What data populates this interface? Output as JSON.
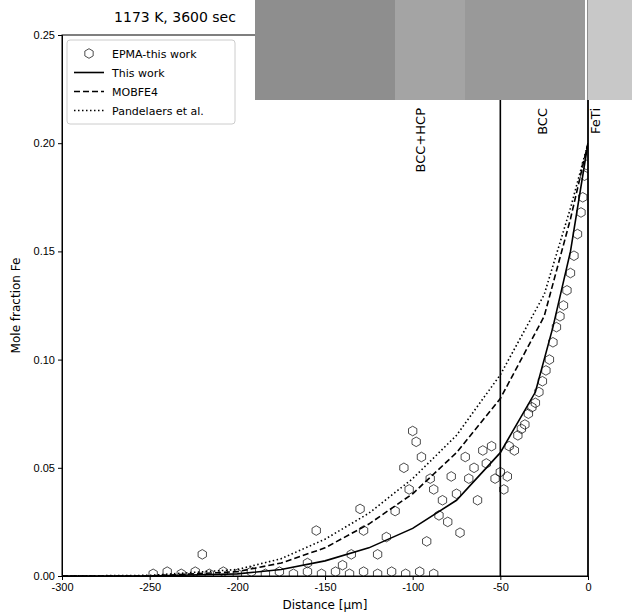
{
  "chart_data": {
    "type": "line",
    "title": "1173 K, 3600 sec",
    "x_label": "Distance [μm]",
    "y_label": "Mole fraction Fe",
    "xlim": [
      -300,
      0
    ],
    "ylim": [
      0,
      0.25
    ],
    "xticks": [
      -300,
      -250,
      -200,
      -150,
      -100,
      -50,
      0
    ],
    "yticks": [
      {
        "value": 0,
        "label": "0.00"
      },
      {
        "value": 0.05,
        "label": "0.05"
      },
      {
        "value": 0.1,
        "label": "0.10"
      },
      {
        "value": 0.15,
        "label": "0.15"
      },
      {
        "value": 0.2,
        "label": "0.20"
      },
      {
        "value": 0.25,
        "label": "0.25"
      }
    ],
    "legend": "upper left",
    "vlines": [
      -50,
      0
    ],
    "annotations": [
      {
        "text": "BCC+HCP",
        "x": -96
      },
      {
        "text": "BCC",
        "x": -26
      },
      {
        "text": "FeTi",
        "x": 4
      }
    ],
    "series": [
      {
        "name": "EPMA-this work",
        "type": "scatter",
        "marker": "hexagon",
        "color": "#000000",
        "x": [
          -248,
          -240,
          -232,
          -224,
          -216,
          -208,
          -200,
          -192,
          -184,
          -176,
          -168,
          -160,
          -152,
          -144,
          -136,
          -128,
          -120,
          -112,
          -104,
          -96,
          -88,
          -220,
          -160,
          -155,
          -130,
          -128,
          -100,
          -98,
          -95,
          -90,
          -88,
          -85,
          -83,
          -80,
          -78,
          -75,
          -73,
          -70,
          -68,
          -65,
          -63,
          -60,
          -58,
          -55,
          -53,
          -50,
          -110,
          -115,
          -120,
          -105,
          -102,
          -92,
          -135,
          -140,
          -48,
          -46,
          -45,
          -42,
          -40,
          -38,
          -36,
          -34,
          -32,
          -30,
          -28,
          -26,
          -24,
          -22,
          -20,
          -18,
          -16,
          -14,
          -12,
          -10,
          -8,
          -6,
          -4,
          -3,
          -2,
          -1
        ],
        "values": [
          0.001,
          0.002,
          0.001,
          0.002,
          0.001,
          0.002,
          0.001,
          0.002,
          0.001,
          0.002,
          0.001,
          0.002,
          0.001,
          0.002,
          0.001,
          0.002,
          0.001,
          0.002,
          0.001,
          0.002,
          0.001,
          0.01,
          0.006,
          0.021,
          0.031,
          0.021,
          0.067,
          0.062,
          0.055,
          0.045,
          0.04,
          0.028,
          0.035,
          0.025,
          0.046,
          0.038,
          0.02,
          0.055,
          0.045,
          0.05,
          0.035,
          0.058,
          0.052,
          0.06,
          0.045,
          0.048,
          0.03,
          0.018,
          0.01,
          0.05,
          0.04,
          0.016,
          0.01,
          0.005,
          0.04,
          0.046,
          0.06,
          0.058,
          0.065,
          0.068,
          0.07,
          0.075,
          0.078,
          0.08,
          0.085,
          0.09,
          0.095,
          0.1,
          0.108,
          0.115,
          0.12,
          0.125,
          0.132,
          0.14,
          0.148,
          0.158,
          0.168,
          0.175,
          0.185,
          0.19
        ]
      },
      {
        "name": "This work",
        "type": "line",
        "line_style": "solid",
        "color": "#000000",
        "x": [
          -300,
          -250,
          -200,
          -175,
          -150,
          -125,
          -100,
          -75,
          -50,
          -30,
          -20,
          -10,
          0
        ],
        "values": [
          0,
          0,
          0.001,
          0.003,
          0.007,
          0.013,
          0.022,
          0.035,
          0.057,
          0.085,
          0.115,
          0.15,
          0.2
        ]
      },
      {
        "name": "MOBFE4",
        "type": "line",
        "line_style": "dashed",
        "color": "#000000",
        "x": [
          -300,
          -250,
          -200,
          -175,
          -150,
          -125,
          -100,
          -75,
          -50,
          -25,
          -10,
          0
        ],
        "values": [
          0,
          0,
          0.002,
          0.006,
          0.013,
          0.024,
          0.038,
          0.057,
          0.082,
          0.12,
          0.165,
          0.2
        ]
      },
      {
        "name": "Pandelaers et al.",
        "type": "line",
        "line_style": "dotted",
        "color": "#000000",
        "x": [
          -300,
          -250,
          -200,
          -175,
          -150,
          -125,
          -100,
          -75,
          -50,
          -25,
          -10,
          0
        ],
        "values": [
          0,
          0.0003,
          0.003,
          0.008,
          0.017,
          0.029,
          0.045,
          0.065,
          0.093,
          0.13,
          0.17,
          0.2
        ]
      }
    ]
  }
}
